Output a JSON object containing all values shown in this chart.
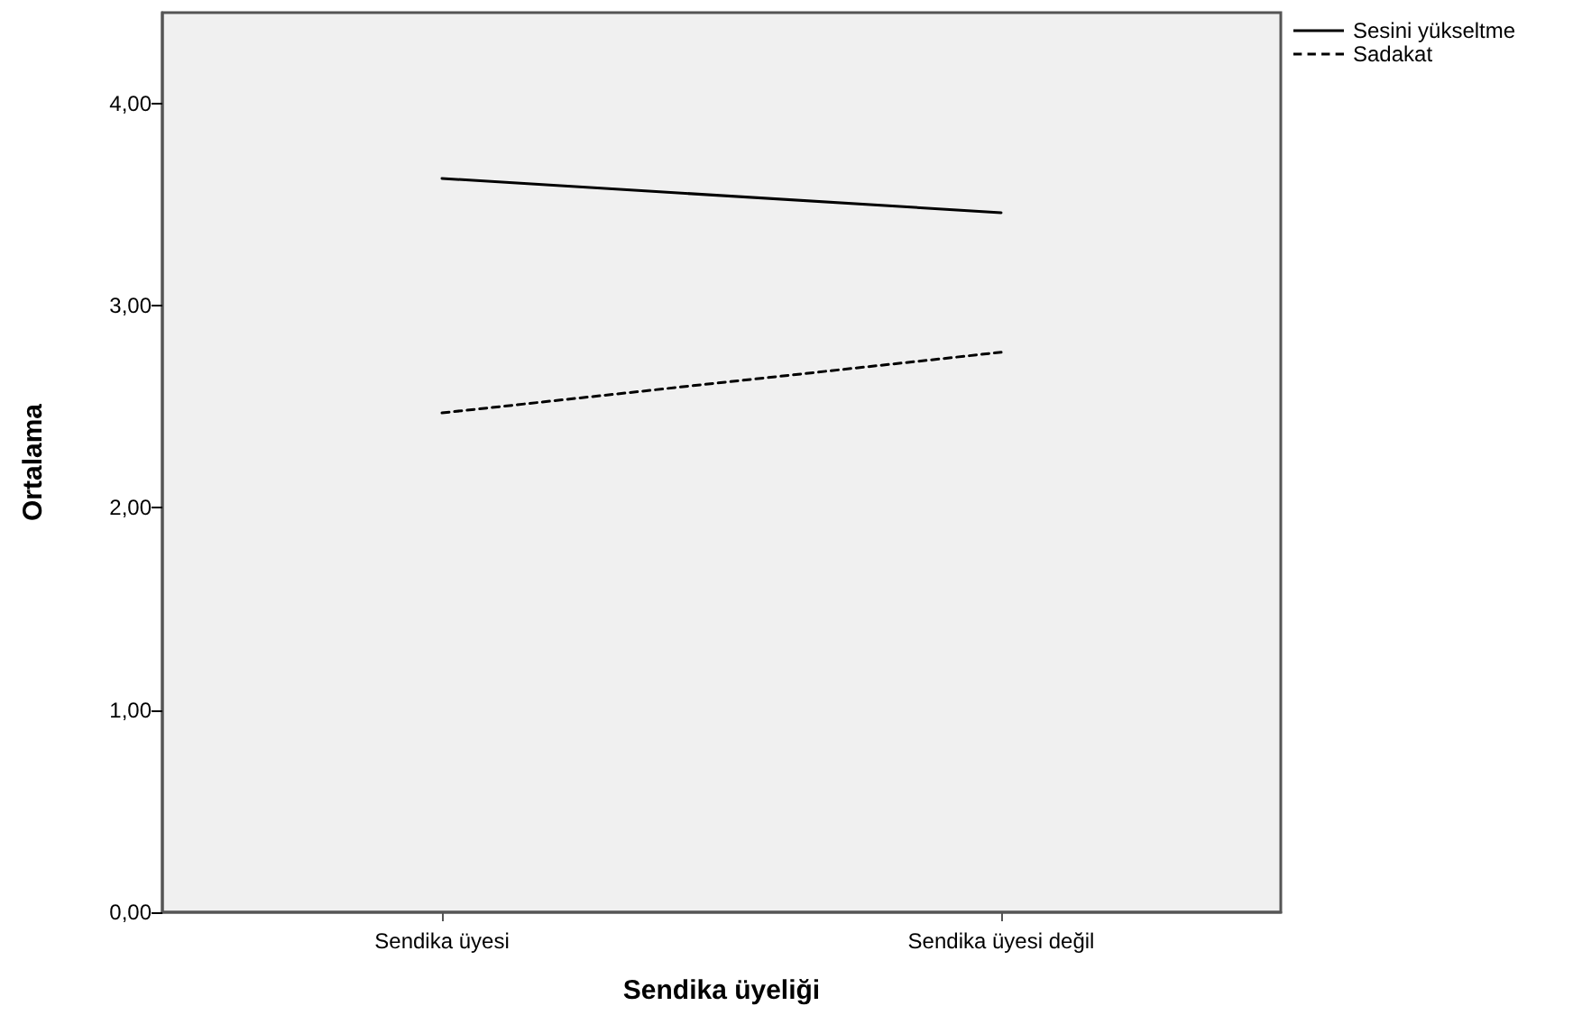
{
  "chart_data": {
    "type": "line",
    "xlabel": "Sendika üyeliği",
    "ylabel": "Ortalama",
    "categories": [
      "Sendika üyesi",
      "Sendika üyesi değil"
    ],
    "series": [
      {
        "name": "Sesini yükseltme",
        "color": "#000000",
        "values": [
          3.63,
          3.46
        ],
        "line_style": "solid"
      },
      {
        "name": "Sadakat",
        "color": "#000000",
        "values": [
          2.47,
          2.77
        ],
        "line_style": "dashed"
      }
    ],
    "ylim": [
      0,
      4.45
    ],
    "yticks": [
      {
        "value": 0,
        "label": "0,00"
      },
      {
        "value": 1,
        "label": "1,00"
      },
      {
        "value": 2,
        "label": "2,00"
      },
      {
        "value": 3,
        "label": "3,00"
      },
      {
        "value": 4,
        "label": "4,00"
      }
    ],
    "grid": false,
    "legend": "top right",
    "marker": "none"
  }
}
